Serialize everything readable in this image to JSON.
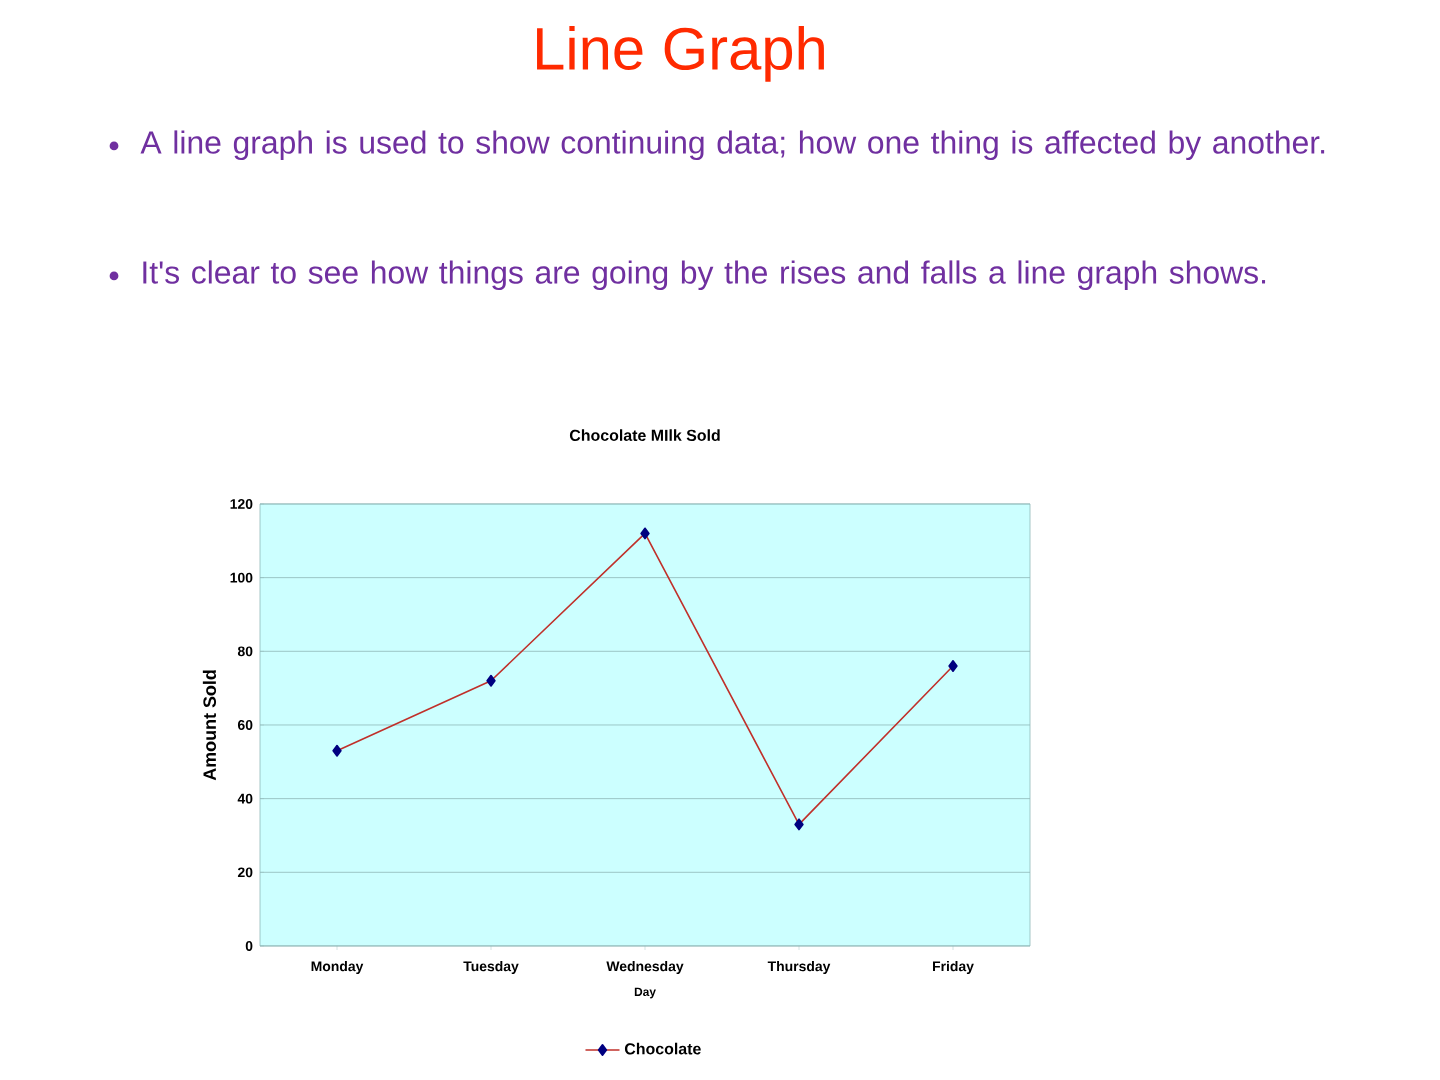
{
  "chart_data": {
    "type": "line",
    "title": "Chocolate MIlk Sold",
    "xlabel": "Day",
    "ylabel": "Amount Sold",
    "annotations": [
      "Line Graph",
      "A line graph is used to show continuing data; how one thing is affected by another.",
      "It's clear to see how things are going by the rises and falls a line graph shows."
    ],
    "categories": [
      "Monday",
      "Tuesday",
      "Wednesday",
      "Thursday",
      "Friday"
    ],
    "series": [
      {
        "name": "Chocolate",
        "color": "#c0302a",
        "values": [
          53,
          72,
          112,
          33,
          76
        ]
      }
    ],
    "ylim": [
      0,
      120
    ],
    "yticks": [
      0,
      20,
      40,
      60,
      80,
      100,
      120
    ],
    "grid": "y",
    "legend": "bottom",
    "marker": "diamond",
    "line_style": "solid"
  }
}
